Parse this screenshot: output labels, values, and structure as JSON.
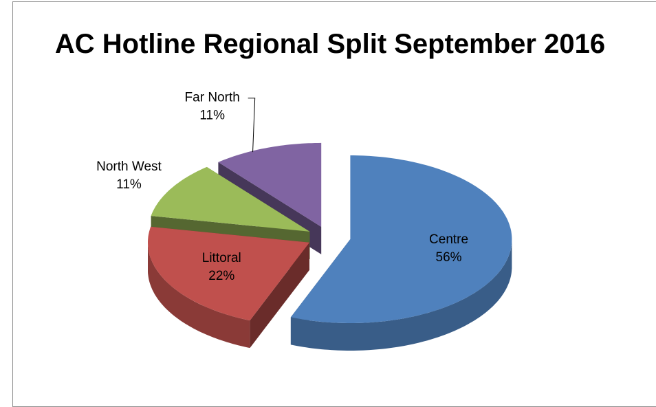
{
  "chart_data": {
    "type": "pie",
    "title": "AC Hotline Regional Split September 2016",
    "categories": [
      "Centre",
      "Littoral",
      "North West",
      "Far North"
    ],
    "values": [
      56,
      22,
      11,
      11
    ],
    "value_labels": [
      "56%",
      "22%",
      "11%",
      "11%"
    ],
    "colors": [
      "#4f81bd",
      "#c0504d",
      "#9bbb59",
      "#8064a2"
    ]
  }
}
